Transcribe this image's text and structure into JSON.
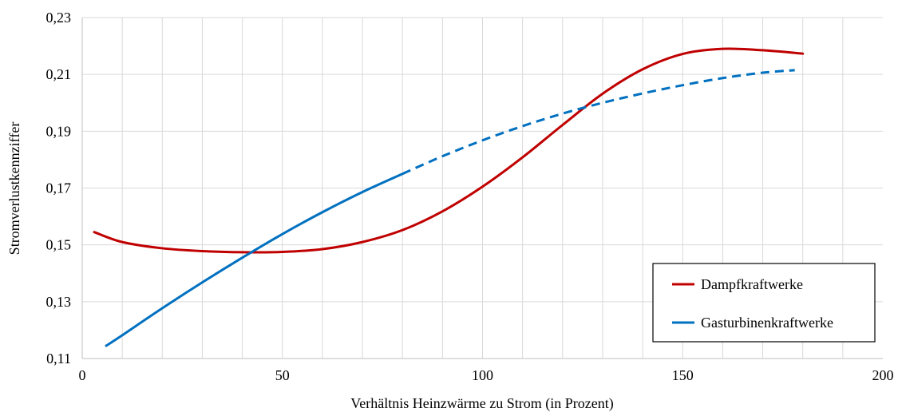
{
  "chart_data": {
    "type": "line",
    "title": "",
    "xlabel": "Verhältnis Heinzwärme zu Strom (in Prozent)",
    "ylabel": "Stromverlustkennziffer",
    "xlim": [
      0,
      200
    ],
    "ylim": [
      0.11,
      0.23
    ],
    "x_ticks": [
      "0",
      "50",
      "100",
      "150",
      "200"
    ],
    "y_ticks": [
      "0,11",
      "0,13",
      "0,15",
      "0,17",
      "0,19",
      "0,21",
      "0,23"
    ],
    "grid": true,
    "legend_position": "bottom-right",
    "series": [
      {
        "name": "Dampfkraftwerke",
        "color": "#C00000",
        "style": "solid",
        "x": [
          3,
          10,
          20,
          30,
          40,
          50,
          60,
          70,
          80,
          90,
          100,
          110,
          120,
          130,
          140,
          150,
          160,
          170,
          180
        ],
        "y": [
          0.1545,
          0.151,
          0.1488,
          0.1478,
          0.1474,
          0.1475,
          0.1485,
          0.151,
          0.1552,
          0.1618,
          0.1705,
          0.1808,
          0.1922,
          0.2032,
          0.2118,
          0.2172,
          0.219,
          0.2185,
          0.2173
        ]
      },
      {
        "name": "Gasturbinenkraftwerke",
        "color": "#0070C0",
        "style": "solid to x=80, dashed after",
        "dashed_from_x": 80,
        "x": [
          6,
          10,
          20,
          30,
          40,
          50,
          60,
          70,
          80,
          90,
          100,
          110,
          120,
          130,
          140,
          150,
          160,
          170,
          178
        ],
        "y": [
          0.1145,
          0.1182,
          0.1277,
          0.1368,
          0.1455,
          0.1538,
          0.1615,
          0.1686,
          0.175,
          0.1812,
          0.1868,
          0.1918,
          0.1962,
          0.2,
          0.2033,
          0.2062,
          0.2087,
          0.2106,
          0.2115
        ]
      }
    ]
  }
}
